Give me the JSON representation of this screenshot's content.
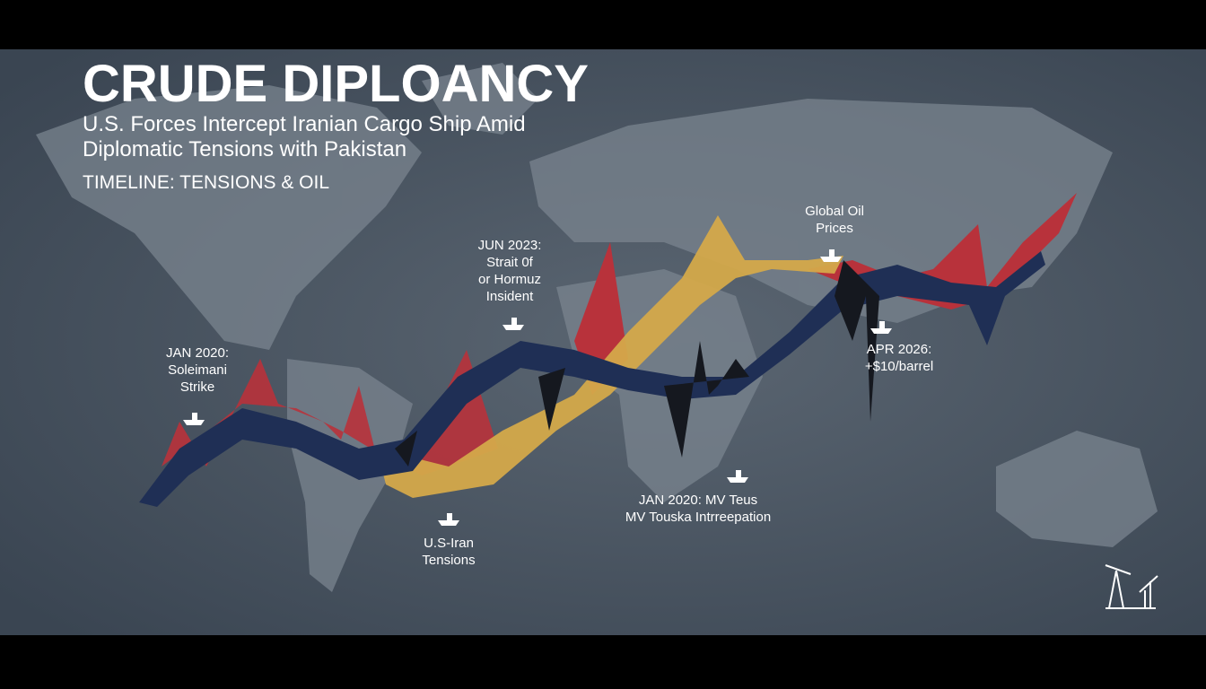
{
  "header": {
    "title": "CRUDE DIPLOANCY",
    "subtitle": [
      "U.S. Forces Intercept Iranian Cargo Ship Amid",
      "Diplomatic Tensions with Pakistan"
    ],
    "section": "TIMELINE: TENSIONS & OIL"
  },
  "annotations": [
    {
      "lines": [
        "JAN 2020:",
        "Soleimani",
        "Strike"
      ]
    },
    {
      "lines": [
        "JUN 2023:",
        "Strait 0f",
        "or Hormuz",
        "Insident"
      ]
    },
    {
      "lines": [
        "Global Oil",
        "Prices"
      ]
    },
    {
      "lines": [
        "APR 2026:",
        "+$10/barrel"
      ]
    },
    {
      "lines": [
        "JAN 2020: MV Teus",
        "MV Touska Intrreepation"
      ]
    },
    {
      "lines": [
        "U.S-Iran",
        "Tensions"
      ]
    }
  ]
}
